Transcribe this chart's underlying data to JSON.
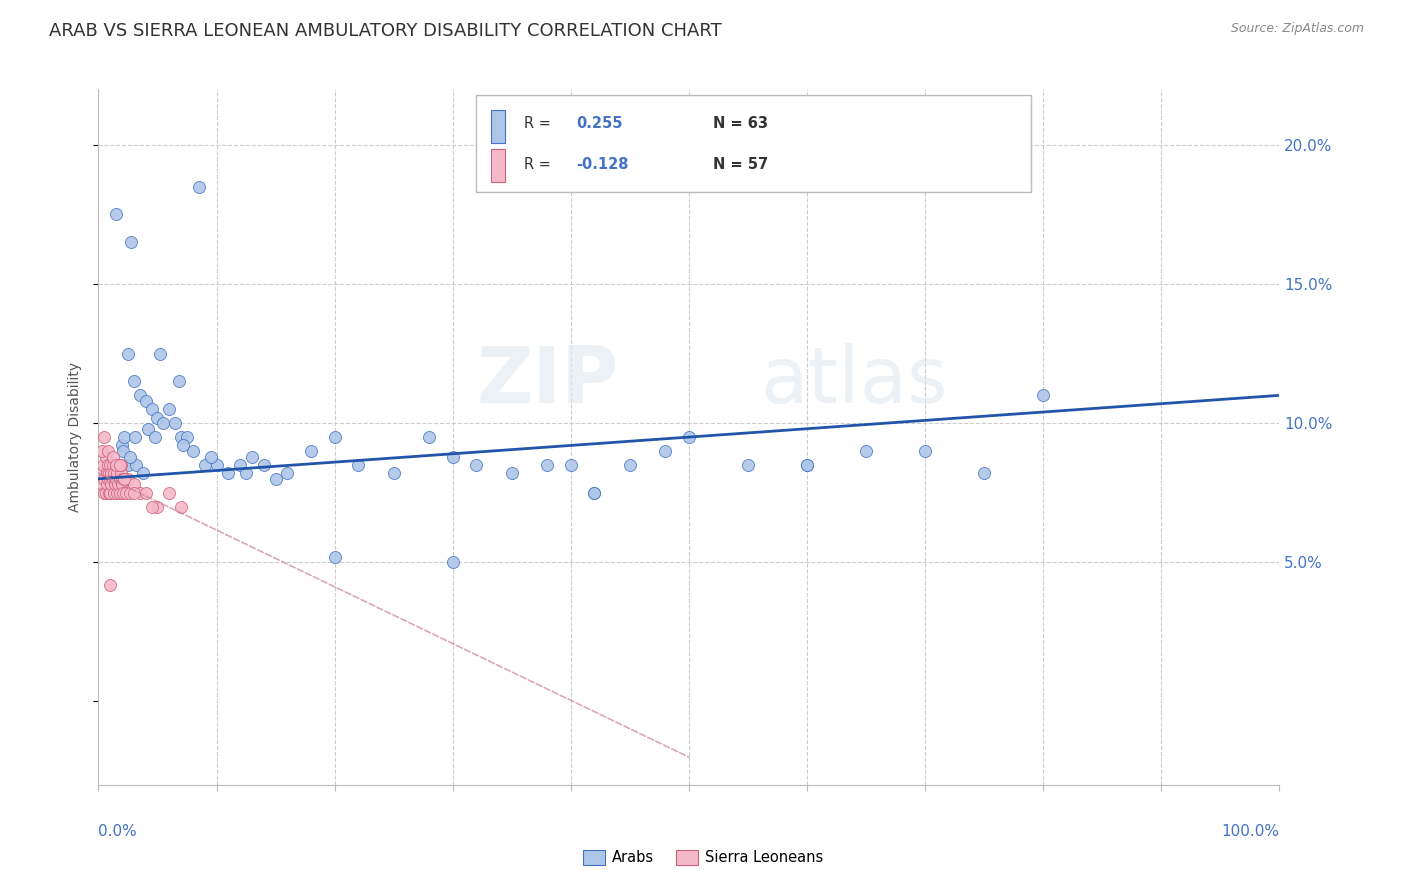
{
  "title": "ARAB VS SIERRA LEONEAN AMBULATORY DISABILITY CORRELATION CHART",
  "source": "Source: ZipAtlas.com",
  "ylabel": "Ambulatory Disability",
  "arab_color": "#aec6e8",
  "arab_edge": "#4472c4",
  "arab_line_color": "#2255aa",
  "sl_color": "#f4b8c8",
  "sl_edge": "#d06080",
  "sl_line_color": "#d08098",
  "background_color": "#ffffff",
  "grid_color": "#cccccc",
  "y_tick_labels": [
    "5.0%",
    "10.0%",
    "15.0%",
    "20.0%"
  ],
  "y_tick_vals": [
    5,
    10,
    15,
    20
  ],
  "xlim": [
    0,
    100
  ],
  "ylim": [
    -3,
    22
  ],
  "legend_R1": "0.255",
  "legend_N1": "63",
  "legend_R2": "-0.128",
  "legend_N2": "57",
  "arab_x": [
    1.5,
    2.8,
    2.5,
    3.0,
    3.5,
    4.0,
    4.5,
    5.0,
    5.5,
    6.0,
    6.5,
    7.0,
    7.5,
    8.0,
    9.0,
    10.0,
    11.0,
    12.0,
    13.0,
    14.0,
    15.0,
    16.0,
    18.0,
    20.0,
    22.0,
    25.0,
    28.0,
    30.0,
    32.0,
    35.0,
    38.0,
    40.0,
    42.0,
    45.0,
    48.0,
    50.0,
    55.0,
    60.0,
    65.0,
    70.0,
    75.0,
    80.0,
    2.0,
    2.2,
    2.5,
    3.2,
    3.8,
    4.2,
    5.2,
    6.8,
    8.5,
    1.8,
    2.1,
    2.7,
    3.1,
    4.8,
    7.2,
    9.5,
    12.5,
    20.0,
    30.0,
    42.0,
    60.0
  ],
  "arab_y": [
    17.5,
    16.5,
    12.5,
    11.5,
    11.0,
    10.8,
    10.5,
    10.2,
    10.0,
    10.5,
    10.0,
    9.5,
    9.5,
    9.0,
    8.5,
    8.5,
    8.2,
    8.5,
    8.8,
    8.5,
    8.0,
    8.2,
    9.0,
    9.5,
    8.5,
    8.2,
    9.5,
    8.8,
    8.5,
    8.2,
    8.5,
    8.5,
    7.5,
    8.5,
    9.0,
    9.5,
    8.5,
    8.5,
    9.0,
    9.0,
    8.2,
    11.0,
    9.2,
    9.5,
    8.5,
    8.5,
    8.2,
    9.8,
    12.5,
    11.5,
    18.5,
    8.5,
    9.0,
    8.8,
    9.5,
    9.5,
    9.2,
    8.8,
    8.2,
    5.2,
    5.0,
    7.5,
    8.5
  ],
  "sl_x": [
    0.2,
    0.3,
    0.4,
    0.5,
    0.5,
    0.6,
    0.6,
    0.7,
    0.7,
    0.8,
    0.8,
    0.9,
    0.9,
    1.0,
    1.0,
    1.0,
    1.1,
    1.1,
    1.2,
    1.2,
    1.3,
    1.3,
    1.4,
    1.4,
    1.5,
    1.5,
    1.6,
    1.6,
    1.7,
    1.7,
    1.8,
    1.8,
    1.9,
    1.9,
    2.0,
    2.0,
    2.1,
    2.2,
    2.3,
    2.5,
    2.7,
    3.0,
    3.5,
    4.0,
    5.0,
    6.0,
    7.0,
    0.3,
    0.5,
    0.8,
    1.0,
    1.2,
    1.5,
    1.8,
    2.2,
    3.0,
    4.5
  ],
  "sl_y": [
    8.2,
    7.8,
    8.5,
    7.5,
    8.0,
    8.8,
    7.5,
    8.2,
    7.8,
    8.5,
    8.0,
    7.5,
    8.2,
    8.5,
    8.0,
    7.5,
    8.2,
    7.8,
    8.0,
    8.5,
    7.5,
    8.2,
    8.0,
    7.8,
    8.5,
    8.0,
    7.5,
    8.2,
    8.5,
    7.8,
    8.0,
    7.5,
    8.2,
    8.5,
    8.0,
    7.8,
    7.5,
    8.0,
    7.5,
    8.0,
    7.5,
    7.8,
    7.5,
    7.5,
    7.0,
    7.5,
    7.0,
    9.0,
    9.5,
    9.0,
    4.2,
    8.8,
    8.5,
    8.5,
    8.0,
    7.5,
    7.0
  ],
  "arab_line_x0": 0,
  "arab_line_x1": 100,
  "arab_line_y0": 8.0,
  "arab_line_y1": 11.0,
  "sl_line_x0": 0,
  "sl_line_x1": 50,
  "sl_line_y0": 8.2,
  "sl_line_y1": -2.0
}
